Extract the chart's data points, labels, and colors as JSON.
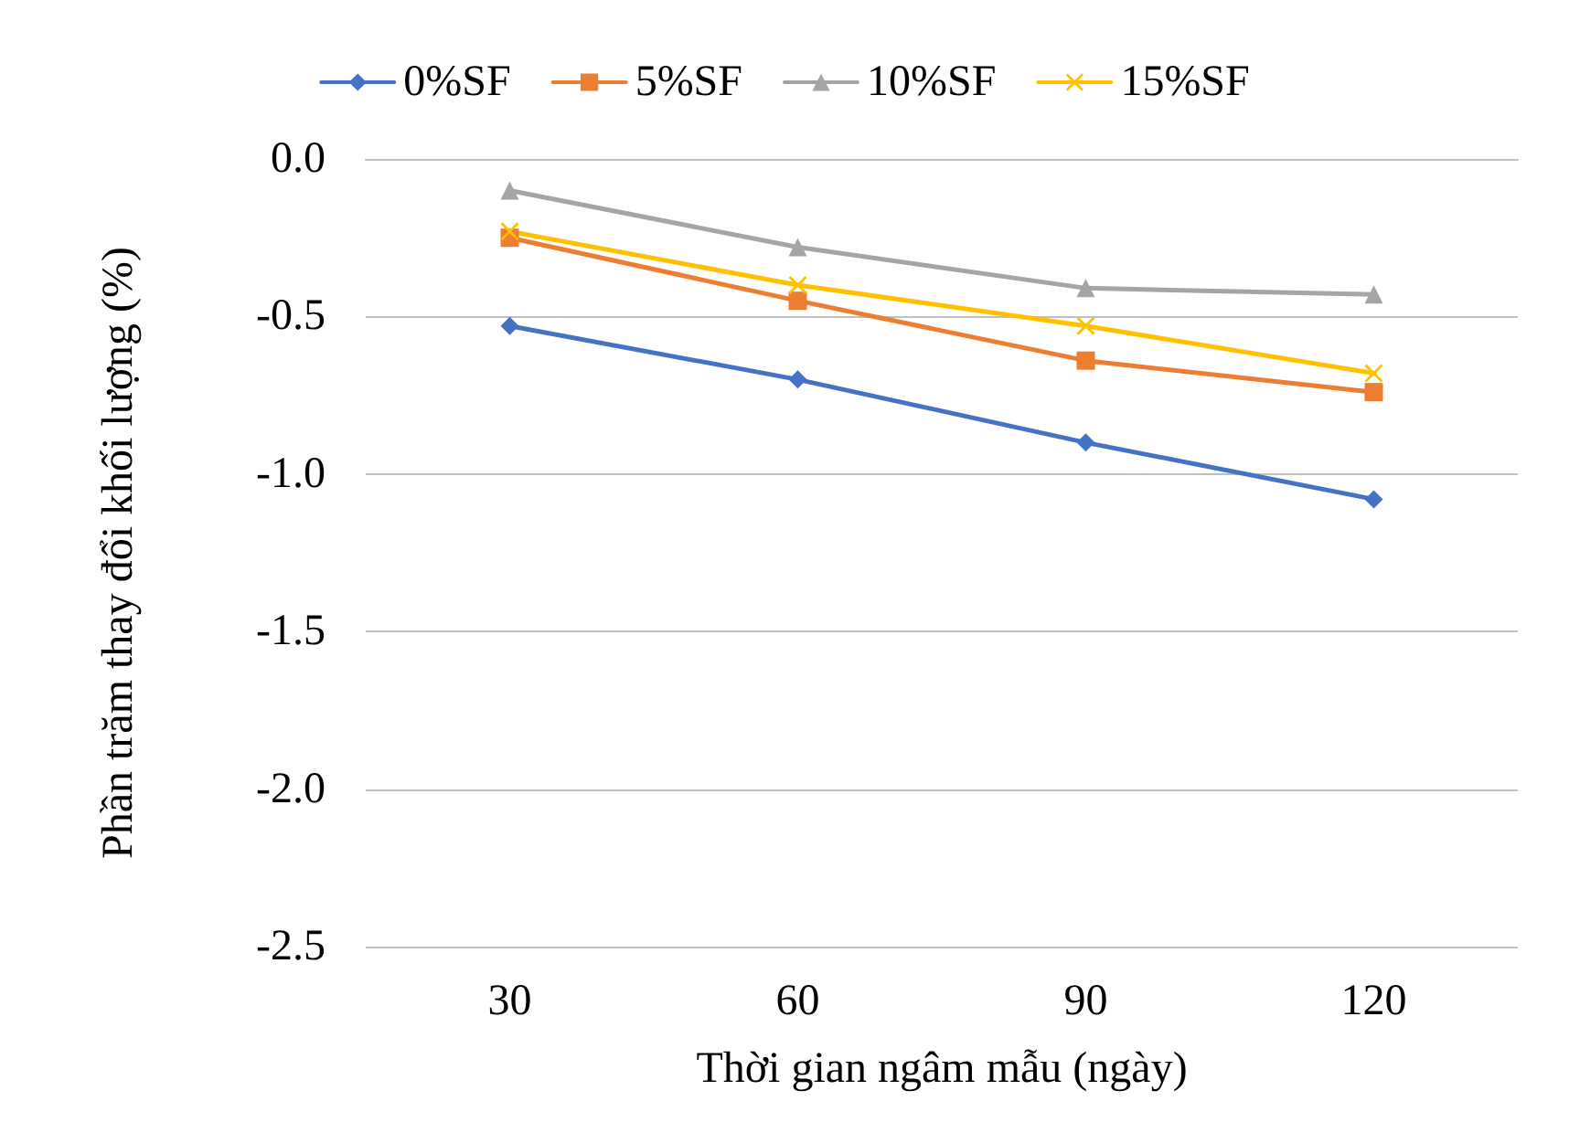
{
  "chart_data": {
    "type": "line",
    "xlabel": "Thời gian ngâm mẫu (ngày)",
    "ylabel": "Phần trăm thay đổi khối lượng (%)",
    "categories": [
      "30",
      "60",
      "90",
      "120"
    ],
    "series": [
      {
        "name": "0%SF",
        "color": "#4472c4",
        "marker": "diamond",
        "values": [
          -0.53,
          -0.7,
          -0.9,
          -1.08
        ]
      },
      {
        "name": "5%SF",
        "color": "#ed7d31",
        "marker": "square",
        "values": [
          -0.25,
          -0.45,
          -0.64,
          -0.74
        ]
      },
      {
        "name": "10%SF",
        "color": "#a5a5a5",
        "marker": "triangle",
        "values": [
          -0.1,
          -0.28,
          -0.41,
          -0.43
        ]
      },
      {
        "name": "15%SF",
        "color": "#ffc000",
        "marker": "cross",
        "values": [
          -0.23,
          -0.4,
          -0.53,
          -0.68
        ]
      }
    ],
    "ylim": [
      -2.5,
      0
    ],
    "yticks": [
      {
        "value": -2.5,
        "label": "-2.5"
      },
      {
        "value": -2,
        "label": "-2.0"
      },
      {
        "value": -1.5,
        "label": "-1.5"
      },
      {
        "value": -1,
        "label": "-1.0"
      },
      {
        "value": -0.5,
        "label": "-0.5"
      },
      {
        "value": 0,
        "label": "0.0"
      }
    ],
    "grid": "y",
    "legend": "top",
    "line_style": "solid"
  }
}
